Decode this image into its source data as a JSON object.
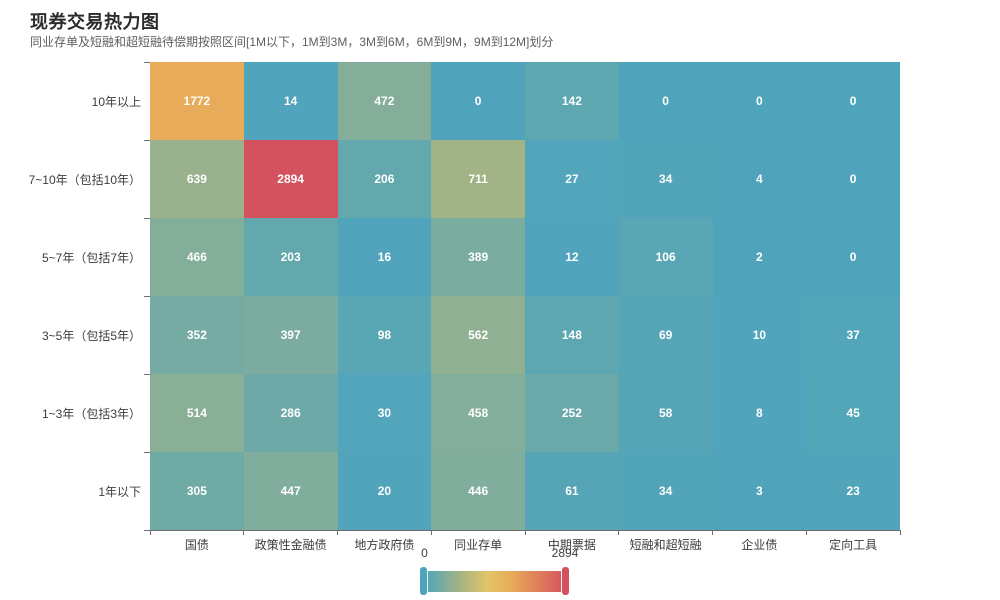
{
  "chart_data": {
    "type": "heatmap",
    "title": "现券交易热力图",
    "subtitle": "同业存单及短融和超短融待偿期按照区间[1M以下，1M到3M，3M到6M，6M到9M，9M到12M]划分",
    "x_categories": [
      "国债",
      "政策性金融债",
      "地方政府债",
      "同业存单",
      "中期票据",
      "短融和超短融",
      "企业债",
      "定向工具"
    ],
    "y_categories_top_to_bottom": [
      "10年以上",
      "7~10年（包括10年）",
      "5~7年（包括7年）",
      "3~5年（包括5年）",
      "1~3年（包括3年）",
      "1年以下"
    ],
    "rows_top_to_bottom": [
      [
        1772,
        14,
        472,
        0,
        142,
        0,
        0,
        0
      ],
      [
        639,
        2894,
        206,
        711,
        27,
        34,
        4,
        0
      ],
      [
        466,
        203,
        16,
        389,
        12,
        106,
        2,
        0
      ],
      [
        352,
        397,
        98,
        562,
        148,
        69,
        10,
        37
      ],
      [
        514,
        286,
        30,
        458,
        252,
        58,
        8,
        45
      ],
      [
        305,
        447,
        20,
        446,
        61,
        34,
        3,
        23
      ]
    ],
    "value_range": [
      0,
      2894
    ],
    "grid_on": false,
    "cell_label_color": "#ffffff",
    "visual_map": {
      "position": "bottom",
      "min_label": "0",
      "max_label": "2894",
      "color_stops": [
        {
          "pos": 0.0,
          "color": "#4FA4BC"
        },
        {
          "pos": 0.071,
          "color": "#63A8AC"
        },
        {
          "pos": 0.163,
          "color": "#84AE9A"
        },
        {
          "pos": 0.246,
          "color": "#A2B386"
        },
        {
          "pos": 0.45,
          "color": "#E3C467"
        },
        {
          "pos": 0.612,
          "color": "#E8AB5A"
        },
        {
          "pos": 1.0,
          "color": "#D4525E"
        }
      ]
    }
  }
}
